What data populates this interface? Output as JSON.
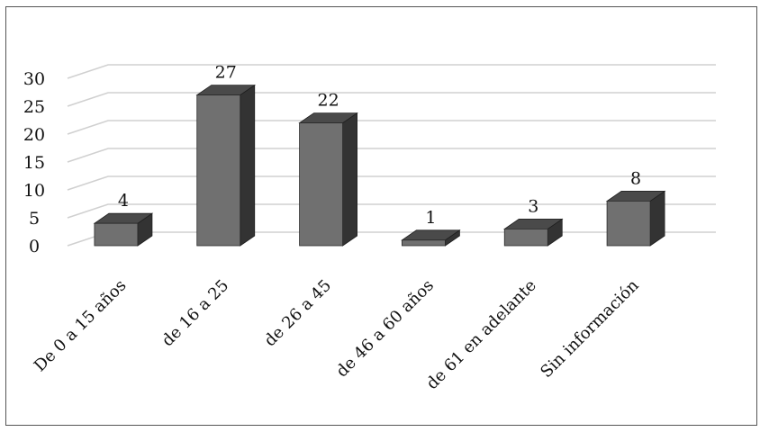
{
  "chart_data": {
    "type": "bar",
    "style": "3d-column",
    "categories": [
      "De 0 a 15 años",
      "de 16 a 25",
      "de 26 a 45",
      "de 46 a 60 años",
      "de 61 en adelante",
      "Sin información"
    ],
    "values": [
      4,
      27,
      22,
      1,
      3,
      8
    ],
    "y_ticks": [
      "0",
      "5",
      "10",
      "15",
      "20",
      "25",
      "30"
    ],
    "ylim": [
      0,
      30
    ],
    "grid": true,
    "legend": "none",
    "colors": {
      "bar_front": "#707070",
      "bar_top": "#4a4a4a",
      "bar_side": "#333333",
      "grid": "#d0d0d0"
    }
  }
}
